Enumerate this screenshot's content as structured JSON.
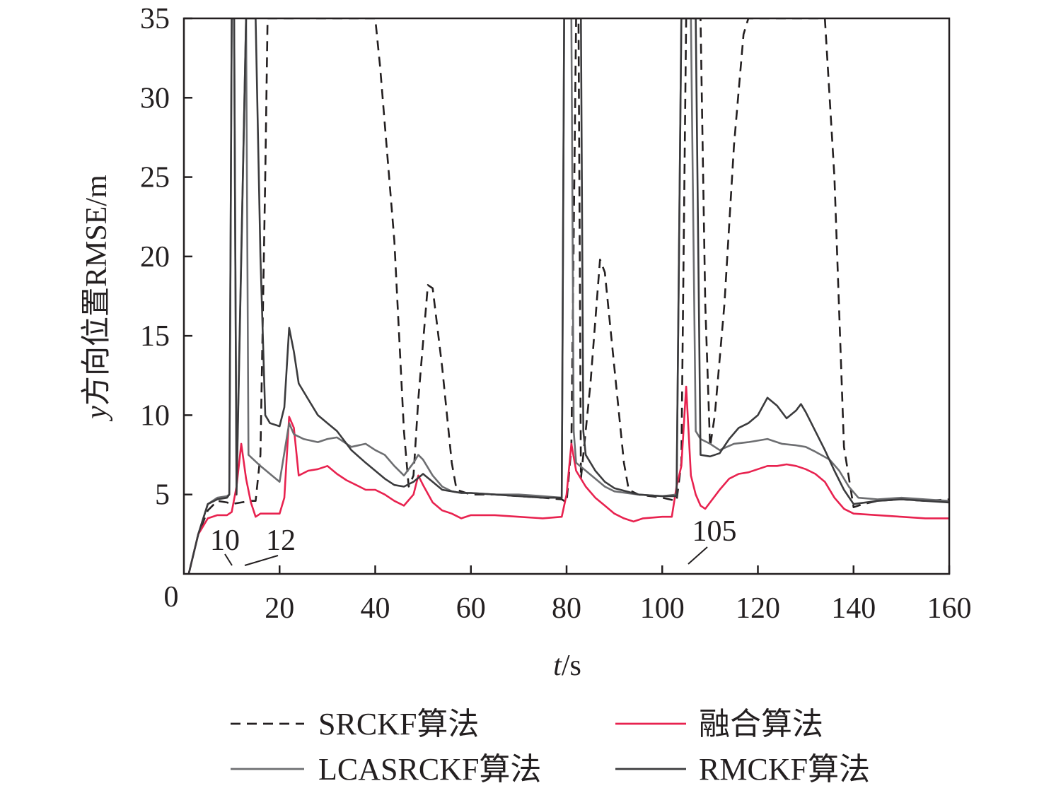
{
  "chart_data": {
    "type": "line",
    "xlabel_italic": "t",
    "xlabel_unit": "/s",
    "ylabel_italic": "y",
    "ylabel_rest": "方向位置RMSE/m",
    "xlim": [
      0,
      160
    ],
    "ylim": [
      0,
      35
    ],
    "xticks": [
      20,
      40,
      60,
      80,
      100,
      120,
      140,
      160
    ],
    "yticks": [
      5,
      10,
      15,
      20,
      25,
      30,
      35
    ],
    "origin_label": "0",
    "grid": false,
    "legend_position": "bottom",
    "legend": [
      {
        "label": "SRCKF算法",
        "color": "#231f20",
        "dash": true
      },
      {
        "label": "融合算法",
        "color": "#e8224f",
        "dash": false
      },
      {
        "label": "LCASRCKF算法",
        "color": "#6d6e71",
        "dash": false
      },
      {
        "label": "RMCKF算法",
        "color": "#3b3b3d",
        "dash": false
      }
    ],
    "annotations": [
      {
        "text": "10",
        "x": 10
      },
      {
        "text": "12",
        "x": 12
      },
      {
        "text": "105",
        "x": 105
      }
    ],
    "series": [
      {
        "name": "SRCKF算法",
        "color": "#231f20",
        "dash": true,
        "points": [
          [
            1,
            0
          ],
          [
            3,
            2.5
          ],
          [
            5,
            4
          ],
          [
            7,
            4.6
          ],
          [
            9,
            4.5
          ],
          [
            10,
            4.4
          ],
          [
            12,
            4.5
          ],
          [
            14,
            4.6
          ],
          [
            15,
            4.6
          ],
          [
            16,
            7.5
          ],
          [
            17,
            25
          ],
          [
            17.5,
            35
          ],
          [
            18,
            35
          ],
          [
            20,
            35
          ],
          [
            40,
            35
          ],
          [
            41,
            32
          ],
          [
            44,
            21
          ],
          [
            46,
            9
          ],
          [
            47,
            5.5
          ],
          [
            48,
            6.2
          ],
          [
            49,
            11
          ],
          [
            51,
            18.2
          ],
          [
            52,
            18
          ],
          [
            54,
            13
          ],
          [
            56,
            7
          ],
          [
            57,
            5.3
          ],
          [
            60,
            5.0
          ],
          [
            65,
            5.0
          ],
          [
            70,
            4.9
          ],
          [
            75,
            4.8
          ],
          [
            79,
            4.7
          ],
          [
            80,
            4.5
          ],
          [
            81,
            8
          ],
          [
            82,
            35
          ],
          [
            82.5,
            35
          ],
          [
            83,
            6
          ],
          [
            85,
            12
          ],
          [
            87,
            19.8
          ],
          [
            88,
            19
          ],
          [
            90,
            13
          ],
          [
            92,
            7
          ],
          [
            93,
            5.3
          ],
          [
            95,
            5.0
          ],
          [
            100,
            4.8
          ],
          [
            103,
            4.6
          ],
          [
            104,
            7
          ],
          [
            105,
            35
          ],
          [
            108,
            35
          ],
          [
            109,
            17
          ],
          [
            110,
            8
          ],
          [
            111,
            10
          ],
          [
            113,
            17
          ],
          [
            115,
            27
          ],
          [
            117,
            34
          ],
          [
            118,
            35
          ],
          [
            133,
            35
          ],
          [
            134,
            35
          ],
          [
            136,
            25
          ],
          [
            138,
            8
          ],
          [
            140,
            4.2
          ],
          [
            142,
            4.4
          ],
          [
            145,
            4.6
          ],
          [
            150,
            4.7
          ],
          [
            155,
            4.6
          ],
          [
            160,
            4.7
          ]
        ]
      },
      {
        "name": "融合算法",
        "color": "#e8224f",
        "dash": false,
        "points": [
          [
            1,
            0
          ],
          [
            3,
            2.5
          ],
          [
            5,
            3.5
          ],
          [
            7,
            3.7
          ],
          [
            9,
            3.7
          ],
          [
            10,
            3.9
          ],
          [
            11,
            5.5
          ],
          [
            12,
            8.2
          ],
          [
            13,
            6
          ],
          [
            14,
            4.5
          ],
          [
            15,
            3.6
          ],
          [
            16,
            3.8
          ],
          [
            18,
            3.8
          ],
          [
            20,
            3.8
          ],
          [
            21,
            4.8
          ],
          [
            22,
            9.9
          ],
          [
            23,
            9.2
          ],
          [
            24,
            6.2
          ],
          [
            26,
            6.5
          ],
          [
            28,
            6.6
          ],
          [
            30,
            6.8
          ],
          [
            32,
            6.3
          ],
          [
            34,
            5.9
          ],
          [
            36,
            5.6
          ],
          [
            38,
            5.3
          ],
          [
            40,
            5.3
          ],
          [
            42,
            5.0
          ],
          [
            44,
            4.6
          ],
          [
            46,
            4.3
          ],
          [
            48,
            5.0
          ],
          [
            49,
            6.2
          ],
          [
            50,
            5.6
          ],
          [
            52,
            4.5
          ],
          [
            54,
            4.0
          ],
          [
            56,
            3.8
          ],
          [
            58,
            3.5
          ],
          [
            60,
            3.7
          ],
          [
            65,
            3.7
          ],
          [
            70,
            3.6
          ],
          [
            75,
            3.5
          ],
          [
            79,
            3.6
          ],
          [
            80,
            5.0
          ],
          [
            81,
            8.2
          ],
          [
            82,
            6.5
          ],
          [
            84,
            5.5
          ],
          [
            86,
            4.8
          ],
          [
            88,
            4.3
          ],
          [
            90,
            3.8
          ],
          [
            92,
            3.5
          ],
          [
            94,
            3.3
          ],
          [
            96,
            3.5
          ],
          [
            100,
            3.6
          ],
          [
            102,
            3.6
          ],
          [
            103,
            5.5
          ],
          [
            104,
            6.8
          ],
          [
            105,
            11.8
          ],
          [
            106,
            6.2
          ],
          [
            107,
            5.0
          ],
          [
            108,
            4.3
          ],
          [
            109,
            4.1
          ],
          [
            110,
            4.5
          ],
          [
            112,
            5.3
          ],
          [
            114,
            6.0
          ],
          [
            116,
            6.3
          ],
          [
            118,
            6.4
          ],
          [
            120,
            6.6
          ],
          [
            122,
            6.8
          ],
          [
            124,
            6.8
          ],
          [
            126,
            6.9
          ],
          [
            128,
            6.8
          ],
          [
            130,
            6.6
          ],
          [
            132,
            6.3
          ],
          [
            134,
            5.8
          ],
          [
            136,
            4.8
          ],
          [
            138,
            4.1
          ],
          [
            140,
            3.8
          ],
          [
            145,
            3.7
          ],
          [
            150,
            3.6
          ],
          [
            155,
            3.5
          ],
          [
            160,
            3.5
          ]
        ]
      },
      {
        "name": "LCASRCKF算法",
        "color": "#6d6e71",
        "dash": false,
        "points": [
          [
            1,
            0
          ],
          [
            3,
            2.5
          ],
          [
            5,
            4.4
          ],
          [
            7,
            4.8
          ],
          [
            9,
            4.9
          ],
          [
            9.5,
            5.0
          ],
          [
            10,
            35
          ],
          [
            10.5,
            35
          ],
          [
            11,
            5.5
          ],
          [
            13,
            35
          ],
          [
            13.5,
            7.5
          ],
          [
            16,
            6.8
          ],
          [
            18,
            6.3
          ],
          [
            20,
            5.8
          ],
          [
            22,
            9.5
          ],
          [
            23,
            8.8
          ],
          [
            25,
            8.5
          ],
          [
            28,
            8.3
          ],
          [
            30,
            8.5
          ],
          [
            32,
            8.6
          ],
          [
            35,
            8.0
          ],
          [
            38,
            8.2
          ],
          [
            40,
            7.8
          ],
          [
            42,
            7.5
          ],
          [
            44,
            6.8
          ],
          [
            46,
            6.2
          ],
          [
            48,
            7.0
          ],
          [
            49,
            7.5
          ],
          [
            50,
            7.2
          ],
          [
            52,
            6.2
          ],
          [
            54,
            5.5
          ],
          [
            56,
            5.2
          ],
          [
            58,
            5.1
          ],
          [
            60,
            5.1
          ],
          [
            65,
            5.0
          ],
          [
            70,
            5.0
          ],
          [
            75,
            4.9
          ],
          [
            79,
            4.8
          ],
          [
            79.5,
            35
          ],
          [
            80,
            35
          ],
          [
            81,
            35
          ],
          [
            81.5,
            9
          ],
          [
            82,
            7
          ],
          [
            84,
            6.5
          ],
          [
            86,
            6.0
          ],
          [
            88,
            5.5
          ],
          [
            90,
            5.2
          ],
          [
            95,
            5.0
          ],
          [
            100,
            4.9
          ],
          [
            103,
            5.0
          ],
          [
            104,
            35
          ],
          [
            105,
            35
          ],
          [
            106,
            35
          ],
          [
            107,
            9
          ],
          [
            108,
            8.5
          ],
          [
            110,
            8.2
          ],
          [
            112,
            7.8
          ],
          [
            115,
            8.2
          ],
          [
            118,
            8.3
          ],
          [
            120,
            8.4
          ],
          [
            122,
            8.5
          ],
          [
            125,
            8.2
          ],
          [
            128,
            8.1
          ],
          [
            130,
            8.0
          ],
          [
            132,
            7.7
          ],
          [
            135,
            7.2
          ],
          [
            137,
            6.5
          ],
          [
            139,
            5.5
          ],
          [
            141,
            4.8
          ],
          [
            145,
            4.7
          ],
          [
            150,
            4.8
          ],
          [
            155,
            4.7
          ],
          [
            160,
            4.6
          ]
        ]
      },
      {
        "name": "RMCKF算法",
        "color": "#3b3b3d",
        "dash": false,
        "points": [
          [
            1,
            0
          ],
          [
            3,
            2.5
          ],
          [
            5,
            4.4
          ],
          [
            7,
            4.7
          ],
          [
            9,
            4.8
          ],
          [
            9.5,
            5.0
          ],
          [
            10,
            35
          ],
          [
            10.5,
            35
          ],
          [
            11,
            5
          ],
          [
            13,
            35
          ],
          [
            14,
            35
          ],
          [
            15,
            35
          ],
          [
            16,
            20
          ],
          [
            17,
            10
          ],
          [
            18,
            9.5
          ],
          [
            20,
            9.3
          ],
          [
            21,
            10.5
          ],
          [
            22,
            15.5
          ],
          [
            23,
            14
          ],
          [
            24,
            12
          ],
          [
            26,
            11
          ],
          [
            28,
            10
          ],
          [
            30,
            9.5
          ],
          [
            32,
            9.0
          ],
          [
            35,
            7.8
          ],
          [
            38,
            7.0
          ],
          [
            40,
            6.5
          ],
          [
            42,
            6.0
          ],
          [
            44,
            5.6
          ],
          [
            46,
            5.5
          ],
          [
            48,
            5.8
          ],
          [
            50,
            6.3
          ],
          [
            52,
            5.8
          ],
          [
            54,
            5.3
          ],
          [
            56,
            5.2
          ],
          [
            58,
            5.1
          ],
          [
            60,
            5.1
          ],
          [
            65,
            5.0
          ],
          [
            70,
            4.9
          ],
          [
            75,
            4.8
          ],
          [
            79,
            4.8
          ],
          [
            79.5,
            35
          ],
          [
            80,
            35
          ],
          [
            81,
            35
          ],
          [
            82,
            35
          ],
          [
            83,
            35
          ],
          [
            83.5,
            9
          ],
          [
            84,
            7.5
          ],
          [
            86,
            6.5
          ],
          [
            88,
            5.8
          ],
          [
            90,
            5.4
          ],
          [
            95,
            5.0
          ],
          [
            100,
            4.9
          ],
          [
            103,
            4.9
          ],
          [
            104,
            35
          ],
          [
            105,
            35
          ],
          [
            106,
            35
          ],
          [
            107,
            35
          ],
          [
            108,
            7.5
          ],
          [
            110,
            7.4
          ],
          [
            112,
            7.6
          ],
          [
            114,
            8.5
          ],
          [
            116,
            9.2
          ],
          [
            118,
            9.5
          ],
          [
            120,
            10.0
          ],
          [
            122,
            11.1
          ],
          [
            124,
            10.6
          ],
          [
            126,
            9.8
          ],
          [
            128,
            10.3
          ],
          [
            129,
            10.7
          ],
          [
            130,
            10.2
          ],
          [
            132,
            9.0
          ],
          [
            134,
            7.8
          ],
          [
            136,
            6.5
          ],
          [
            138,
            5.3
          ],
          [
            140,
            4.4
          ],
          [
            145,
            4.6
          ],
          [
            150,
            4.7
          ],
          [
            155,
            4.6
          ],
          [
            160,
            4.5
          ]
        ]
      }
    ]
  }
}
